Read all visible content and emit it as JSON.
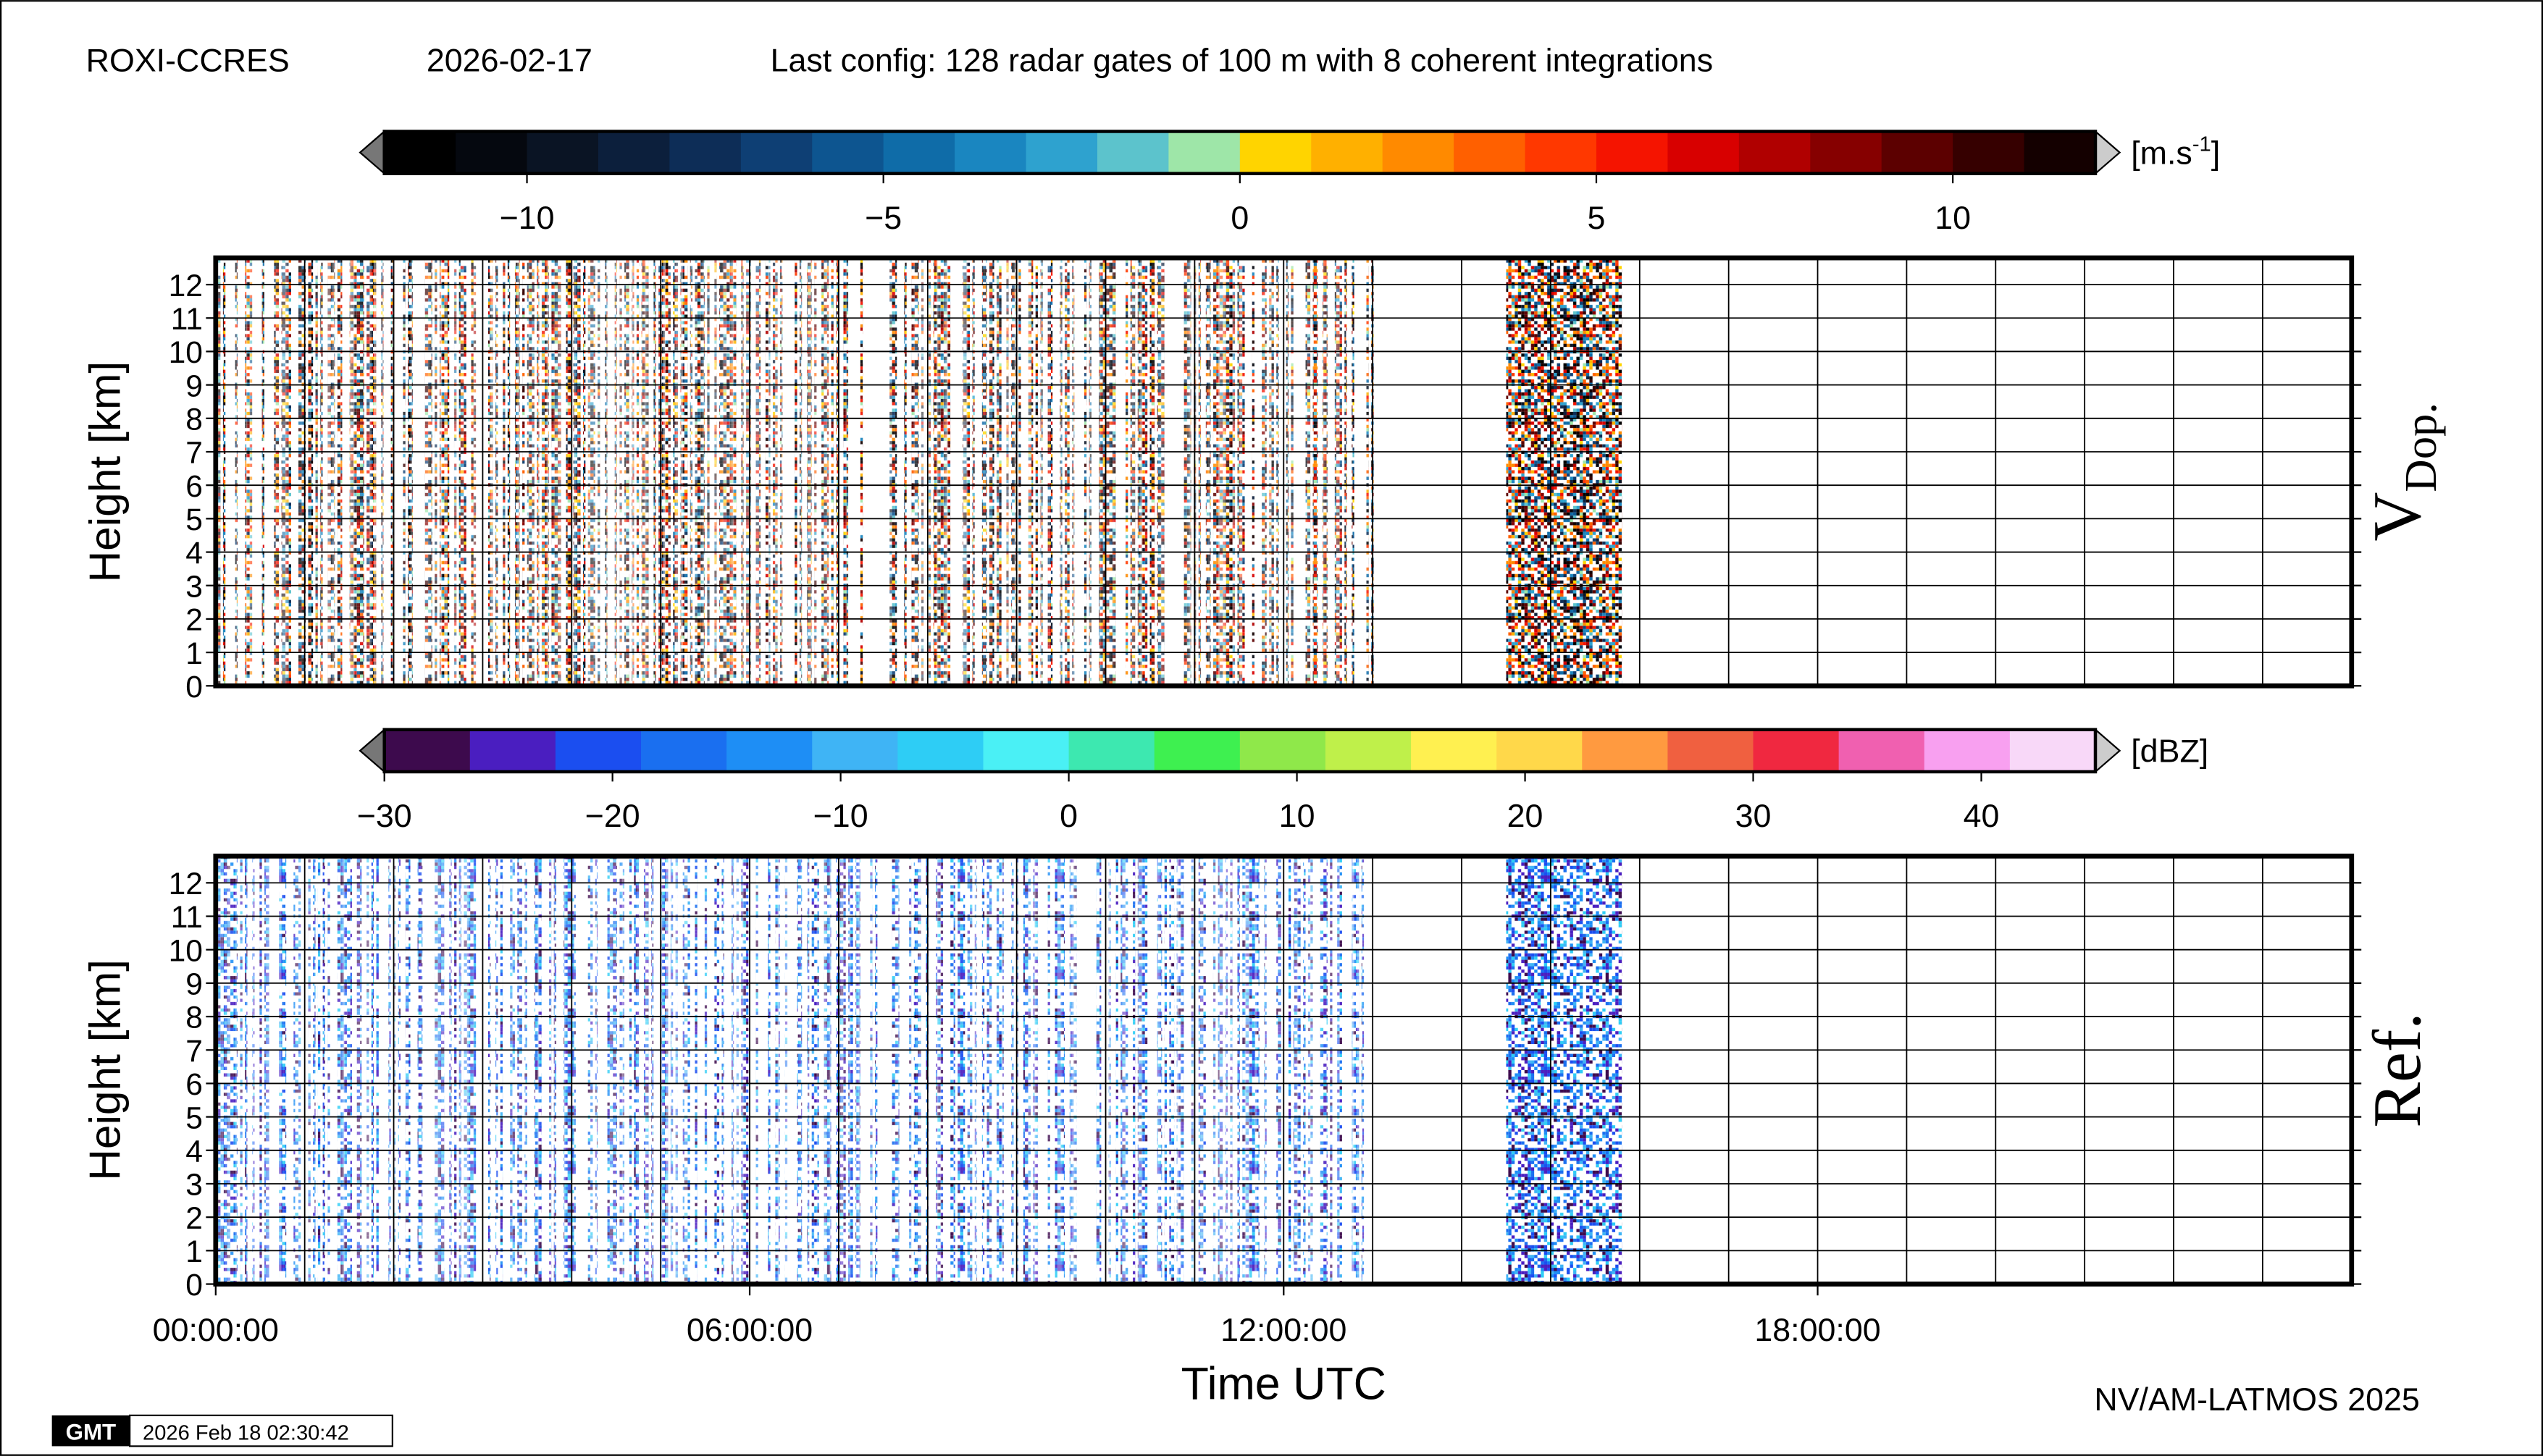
{
  "header": {
    "station": "ROXI-CCRES",
    "date": "2026-02-17",
    "config": "Last config: 128 radar gates of 100 m with 8 coherent integrations"
  },
  "chart_data": [
    {
      "type": "heatmap",
      "label": "V",
      "label_sub": "Dop.",
      "ylabel": "Height [km]",
      "ylim": [
        0,
        12.8
      ],
      "yticks": [
        0,
        1,
        2,
        3,
        4,
        5,
        6,
        7,
        8,
        9,
        10,
        11,
        12
      ],
      "xlim": [
        0,
        24
      ],
      "xminor": 1,
      "grid": true,
      "data_periods": [
        [
          0,
          13.0
        ],
        [
          14.5,
          15.8
        ]
      ],
      "colorbar": {
        "lim": [
          -12,
          12
        ],
        "ticks": [
          {
            "value": -10,
            "label": "−10"
          },
          {
            "value": -5,
            "label": "−5"
          },
          0,
          5,
          10
        ],
        "unit": [
          "[m.s",
          "-1",
          "]"
        ],
        "colors": [
          "#000000",
          "#05080f",
          "#0a1424",
          "#0c1f3c",
          "#0d2d57",
          "#0e3f74",
          "#0d5590",
          "#0f6ca8",
          "#1a86c0",
          "#2ea2cf",
          "#5cc3cc",
          "#9ee6a8",
          "#ffd400",
          "#ffb000",
          "#ff8a00",
          "#ff6000",
          "#ff3800",
          "#f51400",
          "#d80000",
          "#b00000",
          "#860000",
          "#5c0000",
          "#360000",
          "#140000"
        ]
      }
    },
    {
      "type": "heatmap",
      "label": "Ref.",
      "ylabel": "Height [km]",
      "ylim": [
        0,
        12.8
      ],
      "yticks": [
        0,
        1,
        2,
        3,
        4,
        5,
        6,
        7,
        8,
        9,
        10,
        11,
        12
      ],
      "xlim": [
        0,
        24
      ],
      "xminor": 1,
      "grid": true,
      "xticks": [
        {
          "value": 0,
          "label": "00:00:00"
        },
        {
          "value": 6,
          "label": "06:00:00"
        },
        {
          "value": 12,
          "label": "12:00:00"
        },
        {
          "value": 18,
          "label": "18:00:00"
        }
      ],
      "xlabel": "Time UTC",
      "data_periods": [
        [
          0,
          13.0
        ],
        [
          14.5,
          15.8
        ]
      ],
      "colorbar": {
        "lim": [
          -30,
          45
        ],
        "ticks": [
          {
            "value": -30,
            "label": "−30"
          },
          {
            "value": -20,
            "label": "−20"
          },
          {
            "value": -10,
            "label": "−10"
          },
          0,
          10,
          20,
          30,
          40
        ],
        "unit": [
          "[dBZ]"
        ],
        "colors": [
          "#3d0a4d",
          "#4a1ec0",
          "#1b4ef0",
          "#1a6ff0",
          "#1e8ef5",
          "#3fb4f5",
          "#2ecdf5",
          "#4af0f5",
          "#3de8b0",
          "#3ef050",
          "#8fe84a",
          "#bff04a",
          "#fff050",
          "#ffd84a",
          "#ff9a40",
          "#f06040",
          "#f02840",
          "#f060b0",
          "#f8a0f0",
          "#f8d8f8"
        ]
      }
    }
  ],
  "footer": {
    "credit": "NV/AM-LATMOS 2025",
    "logo": "GMT",
    "timestamp": "2026 Feb 18 02:30:42"
  }
}
